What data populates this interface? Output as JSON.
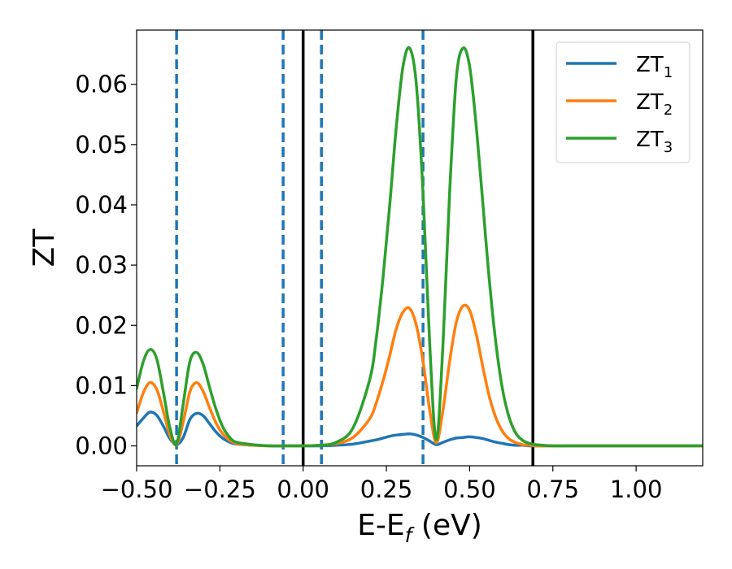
{
  "chart_data": {
    "type": "line",
    "xlabel": "E-E",
    "xlabel_sub": "f",
    "xlabel_unit": " (eV)",
    "ylabel": "ZT",
    "xlim": [
      -0.5,
      1.2
    ],
    "ylim": [
      -0.0033,
      0.069
    ],
    "grid": false,
    "legend_position": "top-right",
    "x_ticks": [
      {
        "value": -0.5,
        "label": "−0.50"
      },
      {
        "value": -0.25,
        "label": "−0.25"
      },
      {
        "value": 0.0,
        "label": "0.00"
      },
      {
        "value": 0.25,
        "label": "0.25"
      },
      {
        "value": 0.5,
        "label": "0.50"
      },
      {
        "value": 0.75,
        "label": "0.75"
      },
      {
        "value": 1.0,
        "label": "1.00"
      }
    ],
    "y_ticks": [
      {
        "value": 0.0,
        "label": "0.00"
      },
      {
        "value": 0.01,
        "label": "0.01"
      },
      {
        "value": 0.02,
        "label": "0.02"
      },
      {
        "value": 0.03,
        "label": "0.03"
      },
      {
        "value": 0.04,
        "label": "0.04"
      },
      {
        "value": 0.05,
        "label": "0.05"
      },
      {
        "value": 0.06,
        "label": "0.06"
      }
    ],
    "vertical_lines": [
      {
        "x": -0.38,
        "style": "dashed",
        "color": "#1f77b4"
      },
      {
        "x": -0.06,
        "style": "dashed",
        "color": "#1f77b4"
      },
      {
        "x": 0.0,
        "style": "solid",
        "color": "#000000"
      },
      {
        "x": 0.055,
        "style": "dashed",
        "color": "#1f77b4"
      },
      {
        "x": 0.36,
        "style": "dashed",
        "color": "#1f77b4"
      },
      {
        "x": 0.69,
        "style": "solid",
        "color": "#000000"
      }
    ],
    "x": [
      -0.5,
      -0.48,
      -0.46,
      -0.44,
      -0.42,
      -0.4,
      -0.38,
      -0.36,
      -0.34,
      -0.32,
      -0.3,
      -0.28,
      -0.26,
      -0.24,
      -0.22,
      -0.2,
      -0.15,
      -0.1,
      -0.05,
      0.0,
      0.05,
      0.1,
      0.15,
      0.2,
      0.22,
      0.24,
      0.26,
      0.28,
      0.3,
      0.32,
      0.34,
      0.36,
      0.38,
      0.4,
      0.42,
      0.44,
      0.46,
      0.48,
      0.5,
      0.52,
      0.54,
      0.56,
      0.58,
      0.6,
      0.62,
      0.64,
      0.66,
      0.68,
      0.7,
      0.75,
      0.8,
      0.9,
      1.0,
      1.1,
      1.2
    ],
    "series": [
      {
        "name": "ZT",
        "name_sub": "1",
        "color": "#1f77b4",
        "values": [
          0.0033,
          0.0046,
          0.0056,
          0.0051,
          0.0033,
          0.0012,
          0.0002,
          0.0014,
          0.0044,
          0.0054,
          0.005,
          0.0036,
          0.0022,
          0.0012,
          0.0006,
          0.0003,
          0.0001,
          0.0,
          0.0,
          0.0,
          0.0,
          0.0001,
          0.0003,
          0.0008,
          0.001,
          0.0013,
          0.0016,
          0.0018,
          0.0019,
          0.002,
          0.0018,
          0.0014,
          0.0008,
          0.0002,
          0.0006,
          0.001,
          0.0013,
          0.0014,
          0.0015,
          0.0014,
          0.0012,
          0.0009,
          0.0006,
          0.0004,
          0.0002,
          0.0001,
          0.0001,
          0.0,
          0.0,
          0.0,
          0.0,
          0.0,
          0.0,
          0.0,
          0.0
        ]
      },
      {
        "name": "ZT",
        "name_sub": "2",
        "color": "#ff7f0e",
        "values": [
          0.0055,
          0.0088,
          0.0105,
          0.0094,
          0.0058,
          0.0018,
          0.0002,
          0.004,
          0.009,
          0.0105,
          0.009,
          0.0062,
          0.0036,
          0.0019,
          0.0009,
          0.0004,
          0.0001,
          0.0,
          0.0,
          0.0,
          0.0001,
          0.0004,
          0.0014,
          0.0045,
          0.0072,
          0.0108,
          0.015,
          0.0195,
          0.0222,
          0.0228,
          0.02,
          0.014,
          0.006,
          0.0005,
          0.006,
          0.014,
          0.0205,
          0.0232,
          0.0225,
          0.0185,
          0.013,
          0.008,
          0.0045,
          0.0023,
          0.0011,
          0.0005,
          0.0002,
          0.0001,
          0.0,
          0.0,
          0.0,
          0.0,
          0.0,
          0.0,
          0.0
        ]
      },
      {
        "name": "ZT",
        "name_sub": "3",
        "color": "#2ca02c",
        "values": [
          0.0095,
          0.014,
          0.016,
          0.0145,
          0.009,
          0.003,
          0.0003,
          0.007,
          0.014,
          0.0155,
          0.0135,
          0.0095,
          0.0058,
          0.003,
          0.0014,
          0.0006,
          0.0002,
          0.0,
          0.0,
          0.0,
          0.0001,
          0.0006,
          0.003,
          0.011,
          0.018,
          0.028,
          0.04,
          0.053,
          0.063,
          0.066,
          0.06,
          0.042,
          0.017,
          0.001,
          0.017,
          0.042,
          0.061,
          0.066,
          0.063,
          0.053,
          0.04,
          0.027,
          0.0165,
          0.009,
          0.0045,
          0.002,
          0.0009,
          0.0004,
          0.0002,
          0.0,
          0.0,
          0.0,
          0.0,
          0.0,
          0.0
        ]
      }
    ]
  }
}
